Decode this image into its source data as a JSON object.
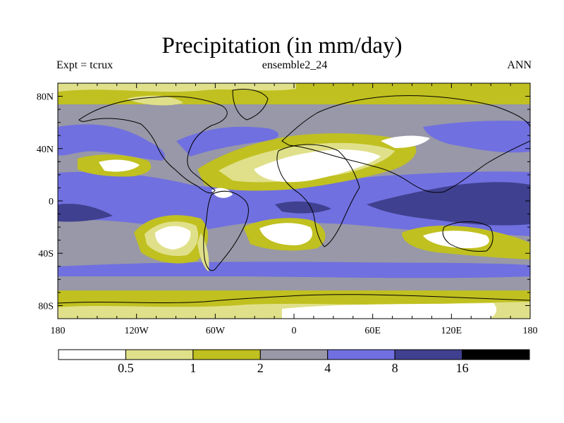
{
  "header": {
    "title": "Precipitation (in mm/day)",
    "left": "Expt = tcrux",
    "center": "ensemble2_24",
    "right": "ANN"
  },
  "map": {
    "lon_range": [
      -180,
      180
    ],
    "lat_range": [
      -90,
      90
    ],
    "lon_ticks": [
      {
        "value": -180,
        "label": "180"
      },
      {
        "value": -120,
        "label": "120W"
      },
      {
        "value": -60,
        "label": "60W"
      },
      {
        "value": 0,
        "label": "0"
      },
      {
        "value": 60,
        "label": "60E"
      },
      {
        "value": 120,
        "label": "120E"
      },
      {
        "value": 180,
        "label": "180"
      }
    ],
    "lat_ticks": [
      {
        "value": 80,
        "label": "80N"
      },
      {
        "value": 40,
        "label": "40N"
      },
      {
        "value": 0,
        "label": "0"
      },
      {
        "value": -40,
        "label": "40S"
      },
      {
        "value": -80,
        "label": "80S"
      }
    ]
  },
  "legend": {
    "levels": [
      "0.5",
      "1",
      "2",
      "4",
      "8",
      "16"
    ],
    "colors": [
      "#ffffff",
      "#e0e08a",
      "#c0c020",
      "#9898a8",
      "#7070e0",
      "#404090",
      "#000000"
    ]
  }
}
